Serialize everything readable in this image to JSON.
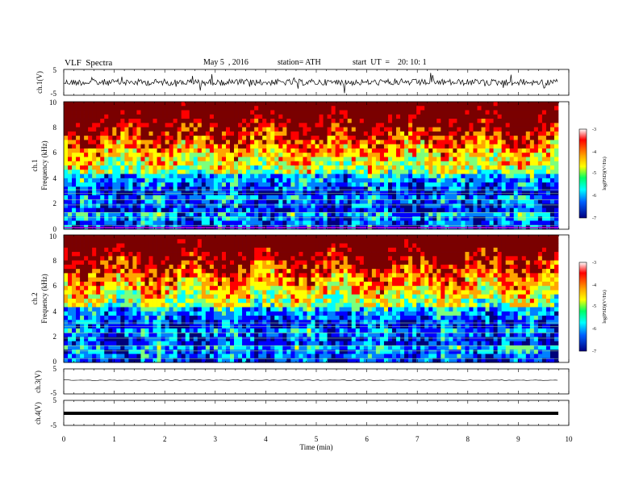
{
  "header": {
    "title": "VLF  Spectra",
    "date": "May 5  , 2016",
    "station": "station= ATH",
    "start": "start  UT  =    20: 10: 1"
  },
  "chart_data": {
    "type": "heatmap",
    "time_axis": {
      "label": "Time  (min)",
      "range": [
        0,
        10
      ],
      "ticks": [
        0,
        1,
        2,
        3,
        4,
        5,
        6,
        7,
        8,
        9,
        10
      ]
    },
    "panels": [
      {
        "id": "ch1-waveform",
        "type": "line",
        "ylabel": "ch.1(V)",
        "yticks": [
          "5",
          "-5"
        ],
        "ylim": [
          -5,
          5
        ]
      },
      {
        "id": "ch1-spectrogram",
        "type": "heatmap",
        "ylabel_top": "ch.1",
        "ylabel": "Frequency  (kHz)",
        "yticks": [
          "0",
          "2",
          "4",
          "6",
          "8",
          "10"
        ],
        "ylim": [
          0,
          10
        ],
        "colorbar": {
          "label": "log(PSD)(V²/Hz)",
          "ticks": [
            "-3",
            "-4",
            "-5",
            "-6",
            "-7"
          ],
          "range": [
            -7,
            -3
          ]
        }
      },
      {
        "id": "ch2-spectrogram",
        "type": "heatmap",
        "ylabel_top": "ch.2",
        "ylabel": "Frequency  (kHz)",
        "yticks": [
          "0",
          "2",
          "4",
          "6",
          "8",
          "10"
        ],
        "ylim": [
          0,
          10
        ],
        "colorbar": {
          "label": "log(PSD)(V²/Hz)",
          "ticks": [
            "-3",
            "-4",
            "-5",
            "-6",
            "-7"
          ],
          "range": [
            -7,
            -3
          ]
        }
      },
      {
        "id": "ch3-waveform",
        "type": "line",
        "ylabel": "ch.3(V)",
        "yticks": [
          "5",
          "-5"
        ],
        "ylim": [
          -5,
          5
        ]
      },
      {
        "id": "ch4-waveform",
        "type": "line",
        "ylabel": "ch.4(V)",
        "yticks": [
          "5",
          "-5"
        ],
        "ylim": [
          -5,
          5
        ]
      }
    ],
    "colormap": [
      "#7a0000",
      "#ff0000",
      "#ffa500",
      "#ffff00",
      "#7cff7c",
      "#00ffff",
      "#0080ff",
      "#0000ff",
      "#00007a"
    ]
  }
}
